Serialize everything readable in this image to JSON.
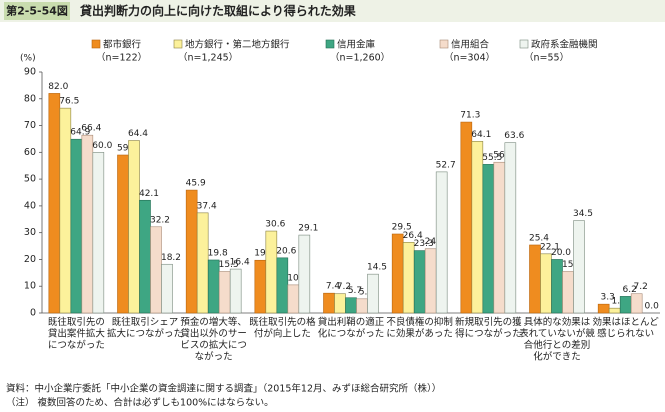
{
  "header": {
    "figure_label": "第2-5-54図",
    "title": "貸出判断力の向上に向けた取組により得られた効果"
  },
  "chart_data": {
    "type": "bar",
    "y_unit": "(%)",
    "categories": [
      "既往取引先の\n貸出案件拡大\nにつながった",
      "既往取引シェア\n拡大につながった",
      "預金の増大等、\n貸出以外のサー\nビスの拡大につ\nながった",
      "既往取引先の格\n付が向上した",
      "貸出利鞘の適正\n化につながった",
      "不良債権の抑制\nに効果があった",
      "新規取引先の獲\n得につながった",
      "具体的な効果は\n表れていないが競\n合他行との差別\n化ができた",
      "効果はほとんど\n感じられない"
    ],
    "series": [
      {
        "name": "都市銀行",
        "sample": "（n=122）",
        "color": "#ef8c1f",
        "values": [
          82.0,
          59.0,
          45.9,
          19.7,
          7.4,
          29.5,
          71.3,
          25.4,
          3.3
        ],
        "value_labels": [
          "82.0",
          "59.0",
          "45.9",
          "19.7",
          "7.4",
          "29.5",
          "71.3",
          "25.4",
          "3.3"
        ]
      },
      {
        "name": "地方銀行・第二地方銀行",
        "sample": "（n=1,245）",
        "color": "#fcf19b",
        "values": [
          76.5,
          64.4,
          37.4,
          30.6,
          7.2,
          26.4,
          64.1,
          22.1,
          1.8
        ],
        "value_labels": [
          "76.5",
          "64.4",
          "37.4",
          "30.6",
          "7.2",
          "26.4",
          "64.1",
          "22.1",
          "1.8"
        ]
      },
      {
        "name": "信用金庫",
        "sample": "（n=1,260）",
        "color": "#3ea683",
        "values": [
          64.9,
          42.1,
          19.8,
          20.6,
          5.7,
          23.3,
          55.5,
          20.0,
          6.2
        ],
        "value_labels": [
          "64.9",
          "42.1",
          "19.8",
          "20.6",
          "5.7",
          "23.3",
          "55.5",
          "20.0",
          "6.2"
        ]
      },
      {
        "name": "信用組合",
        "sample": "（n=304）",
        "color": "#f5dccb",
        "values": [
          66.4,
          32.2,
          15.5,
          10.5,
          5.3,
          24.0,
          56.3,
          15.5,
          7.2
        ],
        "value_labels": [
          "66.4",
          "32.2",
          "15.5",
          "10.5",
          "5.3",
          "24.0",
          "56.3",
          "15.5",
          "7.2"
        ]
      },
      {
        "name": "政府系金融機関",
        "sample": "（n=55）",
        "color": "#eef4ef",
        "values": [
          60.0,
          18.2,
          16.4,
          29.1,
          14.5,
          52.7,
          63.6,
          34.5,
          0.0
        ],
        "value_labels": [
          "60.0",
          "18.2",
          "16.4",
          "29.1",
          "14.5",
          "52.7",
          "63.6",
          "34.5",
          "0.0"
        ]
      }
    ],
    "ylim": [
      0,
      90
    ],
    "yticks": [
      0,
      10,
      20,
      30,
      40,
      50,
      60,
      70,
      80,
      90
    ],
    "grid": false
  },
  "footnotes": [
    "資料：中小企業庁委託「中小企業の資金調達に関する調査」（2015年12月、みずほ総合研究所（株））",
    "（注） 複数回答のため、合計は必ずしも100%にはならない。"
  ]
}
